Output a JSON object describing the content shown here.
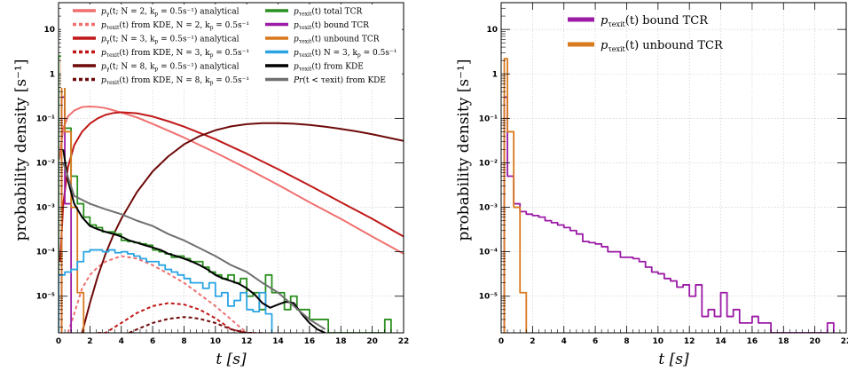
{
  "chart_data": [
    {
      "type": "line",
      "title": "",
      "xlabel": "t  [s]",
      "ylabel": "probability density  [s⁻¹]",
      "xlim": [
        0,
        22
      ],
      "ylim": [
        1.5e-06,
        40
      ],
      "yscale": "log",
      "grid": true,
      "legend_position": "top",
      "x_ticks": [
        "0",
        "2",
        "4",
        "6",
        "8",
        "10",
        "12",
        "14",
        "16",
        "18",
        "20",
        "22"
      ],
      "y_ticks": [
        "10",
        "1",
        "10⁻¹",
        "10⁻²",
        "10⁻³",
        "10⁻⁴",
        "10⁻⁵"
      ],
      "series": [
        {
          "name": "pγ(t; N = 2, kₚ = 0.5s⁻¹) analytical",
          "color": "#f07070",
          "style": "solid",
          "x": [
            0.05,
            0.3,
            0.6,
            1,
            1.5,
            2,
            2.5,
            3,
            4,
            5,
            6,
            8,
            10,
            12,
            14,
            16,
            18,
            20,
            22
          ],
          "y": [
            0.012,
            0.06,
            0.11,
            0.15,
            0.18,
            0.185,
            0.18,
            0.17,
            0.135,
            0.105,
            0.075,
            0.037,
            0.017,
            0.0075,
            0.0032,
            0.0013,
            0.00055,
            0.00022,
            9e-05
          ]
        },
        {
          "name": "pτexit(t) from KDE, N = 2, kₚ = 0.5s⁻¹",
          "color": "#f07070",
          "style": "dashed",
          "x": [
            0.6,
            1,
            1.5,
            2,
            2.5,
            3,
            4,
            5,
            6,
            7,
            8,
            9,
            10,
            11,
            12,
            13
          ],
          "y": [
            1.5e-06,
            4e-06,
            1.5e-05,
            3e-05,
            4.5e-05,
            6e-05,
            8e-05,
            7e-05,
            5e-05,
            3.2e-05,
            2e-05,
            1.1e-05,
            6e-06,
            3e-06,
            1.5e-06,
            8e-07
          ]
        },
        {
          "name": "pγ(t; N = 3, kₚ = 0.5s⁻¹) analytical",
          "color": "#c01818",
          "style": "solid",
          "x": [
            0.1,
            0.3,
            0.6,
            1,
            1.5,
            2,
            2.5,
            3,
            3.5,
            4,
            5,
            6,
            7,
            8,
            10,
            12,
            14,
            16,
            18,
            20,
            22
          ],
          "y": [
            6e-05,
            0.0012,
            0.008,
            0.025,
            0.05,
            0.076,
            0.1,
            0.12,
            0.132,
            0.137,
            0.13,
            0.11,
            0.086,
            0.065,
            0.034,
            0.016,
            0.0072,
            0.0031,
            0.0013,
            0.00055,
            0.00022
          ]
        },
        {
          "name": "pτexit(t) from KDE, N = 3, kₚ = 0.5s⁻¹",
          "color": "#c01818",
          "style": "dashed",
          "x": [
            2.5,
            3,
            4,
            5,
            6,
            7,
            8,
            9,
            10,
            11,
            12
          ],
          "y": [
            8e-07,
            1.3e-06,
            2.5e-06,
            4.2e-06,
            6e-06,
            7e-06,
            6.5e-06,
            5e-06,
            3.2e-06,
            1.8e-06,
            8e-07
          ]
        },
        {
          "name": "pγ(t; N = 8, kₚ = 0.5s⁻¹) analytical",
          "color": "#6e0a0a",
          "style": "solid",
          "x": [
            1.5,
            2,
            2.5,
            3,
            3.5,
            4,
            5,
            6,
            7,
            8,
            9,
            10,
            11,
            12,
            13,
            14,
            15,
            16,
            17,
            18,
            19,
            20,
            21,
            22
          ],
          "y": [
            1.5e-06,
            7e-06,
            2.8e-05,
            9e-05,
            0.00024,
            0.00055,
            0.0022,
            0.0064,
            0.014,
            0.026,
            0.04,
            0.054,
            0.066,
            0.074,
            0.078,
            0.078,
            0.076,
            0.071,
            0.065,
            0.058,
            0.051,
            0.044,
            0.037,
            0.031
          ]
        },
        {
          "name": "pτexit(t) from KDE, N = 8, kₚ = 0.5s⁻¹",
          "color": "#6e0a0a",
          "style": "dashed",
          "x": [
            4.5,
            5,
            6,
            7,
            8,
            8.5,
            9,
            10,
            11,
            12,
            12.5
          ],
          "y": [
            1.5e-06,
            1.8e-06,
            2.5e-06,
            3.1e-06,
            3.4e-06,
            3.3e-06,
            3.1e-06,
            2.5e-06,
            1.8e-06,
            1.2e-06,
            9e-07
          ]
        },
        {
          "name": "pτexit(t) total TCR",
          "color": "#2a8f1e",
          "style": "step",
          "edges": [
            0,
            0.4,
            0.8,
            1.2,
            1.6,
            2,
            2.4,
            2.8,
            3.2,
            3.6,
            4,
            4.4,
            4.8,
            5.2,
            5.6,
            6,
            6.4,
            6.8,
            7.2,
            7.6,
            8,
            8.4,
            8.8,
            9.2,
            9.6,
            10,
            10.4,
            10.8,
            11.2,
            11.6,
            12,
            12.4,
            12.8,
            13.2,
            13.6,
            14,
            14.4,
            14.8,
            15.2,
            15.6,
            16,
            16.4,
            16.8,
            17.2,
            20.8,
            21.2
          ],
          "values": [
            2.5,
            0.06,
            0.005,
            0.0012,
            0.0006,
            0.0004,
            0.00035,
            0.00028,
            0.00028,
            0.00025,
            0.00018,
            0.00017,
            0.00016,
            0.00015,
            0.00014,
            0.00011,
            0.0001,
            9e-05,
            7.5e-05,
            8e-05,
            7e-05,
            6e-05,
            6e-05,
            4.5e-05,
            3.5e-05,
            3e-05,
            2.5e-05,
            3e-05,
            2e-05,
            2.5e-05,
            1e-05,
            1.2e-05,
            5e-06,
            3e-05,
            1.2e-05,
            1.2e-05,
            5e-06,
            1e-05,
            5e-06,
            5e-06,
            3e-06,
            3e-06,
            3e-06,
            0,
            3e-06
          ]
        },
        {
          "name": "pτexit(t) bound TCR",
          "color": "#9b1aa6",
          "style": "step",
          "edges": [
            0.2,
            0.4,
            0.8
          ],
          "values": [
            0.3,
            0.0012
          ]
        },
        {
          "name": "pτexit(t) unbound TCR",
          "color": "#d9791e",
          "style": "step",
          "edges": [
            0.2,
            0.4,
            0.8,
            1.2,
            1.6
          ],
          "values": [
            2.2,
            0.05,
            0.001,
            1.2e-05
          ]
        },
        {
          "name": "pτexit(t) N = 3, kₚ = 0.5s⁻¹",
          "color": "#2aa4e3",
          "style": "step",
          "edges": [
            0,
            0.4,
            0.8,
            1.2,
            1.6,
            2,
            2.4,
            2.8,
            3.2,
            3.6,
            4,
            4.4,
            4.8,
            5.2,
            5.6,
            6,
            6.4,
            6.8,
            7.2,
            7.6,
            8,
            8.4,
            8.8,
            9.2,
            9.6,
            10,
            10.4,
            10.8,
            11.2,
            11.6,
            12,
            12.4,
            12.8,
            13.2,
            13.6
          ],
          "values": [
            3e-05,
            3.5e-05,
            4e-05,
            6e-05,
            0.0001,
            0.00011,
            0.00011,
            0.0001,
            0.00011,
            9.5e-05,
            0.0001,
            9e-05,
            8e-05,
            7e-05,
            6e-05,
            6e-05,
            5e-05,
            4e-05,
            3.5e-05,
            3e-05,
            2.5e-05,
            2e-05,
            2e-05,
            1.5e-05,
            2e-05,
            1e-05,
            1.2e-05,
            6e-06,
            8e-06,
            1.2e-05,
            5e-06,
            4.5e-06,
            1.2e-05,
            4e-06
          ]
        },
        {
          "name": "pτexit(t)  from KDE",
          "color": "#000000",
          "style": "solid",
          "x": [
            0.3,
            0.6,
            1,
            1.5,
            2,
            2.5,
            3,
            3.5,
            4,
            4.5,
            5,
            5.5,
            6,
            6.5,
            7,
            7.5,
            8,
            8.5,
            9,
            9.5,
            10,
            10.5,
            11,
            11.5,
            12,
            12.5,
            13,
            13.5,
            14,
            14.5,
            15,
            15.5,
            16,
            16.5,
            17
          ],
          "y": [
            0.02,
            0.004,
            0.0012,
            0.0006,
            0.00038,
            0.00032,
            0.00028,
            0.00025,
            0.00022,
            0.00018,
            0.00016,
            0.00014,
            0.000125,
            0.00011,
            9e-05,
            8e-05,
            7e-05,
            6e-05,
            5e-05,
            4e-05,
            3e-05,
            2.5e-05,
            2.2e-05,
            1.9e-05,
            1.5e-05,
            1.1e-05,
            7e-06,
            5.5e-06,
            6.5e-06,
            7.5e-06,
            7e-06,
            4e-06,
            2.5e-06,
            1.8e-06,
            1.5e-06
          ]
        },
        {
          "name": "Pr(t < τexit)  from KDE",
          "color": "#707070",
          "style": "solid",
          "x": [
            0.3,
            1,
            2,
            3,
            4,
            5,
            6,
            7,
            8,
            9,
            10,
            11,
            12,
            13,
            14,
            15,
            16,
            17
          ],
          "y": [
            0.01,
            0.0018,
            0.0012,
            0.0009,
            0.0007,
            0.0005,
            0.00038,
            0.00025,
            0.00018,
            0.00012,
            8e-05,
            5e-05,
            3.5e-05,
            2e-05,
            1.2e-05,
            6e-06,
            3e-06,
            1.8e-06
          ]
        }
      ],
      "legend": [
        {
          "tex": "p",
          "sub": "γ",
          "rest": "(t; N = 2, k",
          "sub2": "p",
          "rest2": " = 0.5s⁻¹) analytical",
          "color": "#f07070",
          "style": "solid"
        },
        {
          "tex": "p",
          "sub": "τexit",
          "rest": "(t) from KDE, N = 2, k",
          "sub2": "p",
          "rest2": " = 0.5s⁻¹",
          "color": "#f07070",
          "style": "dashed"
        },
        {
          "tex": "p",
          "sub": "γ",
          "rest": "(t; N = 3, k",
          "sub2": "p",
          "rest2": " = 0.5s⁻¹) analytical",
          "color": "#c01818",
          "style": "solid"
        },
        {
          "tex": "p",
          "sub": "τexit",
          "rest": "(t) from KDE, N = 3, k",
          "sub2": "p",
          "rest2": " = 0.5s⁻¹",
          "color": "#c01818",
          "style": "dashed"
        },
        {
          "tex": "p",
          "sub": "γ",
          "rest": "(t; N = 8, k",
          "sub2": "p",
          "rest2": " = 0.5s⁻¹) analytical",
          "color": "#6e0a0a",
          "style": "solid"
        },
        {
          "tex": "p",
          "sub": "τexit",
          "rest": "(t) from KDE, N = 8, k",
          "sub2": "p",
          "rest2": " = 0.5s⁻¹",
          "color": "#6e0a0a",
          "style": "dashed"
        },
        {
          "tex": "p",
          "sub": "τexit",
          "rest": "(t) total TCR",
          "sub2": "",
          "rest2": "",
          "color": "#2a8f1e",
          "style": "solid"
        },
        {
          "tex": "p",
          "sub": "τexit",
          "rest": "(t) bound TCR",
          "sub2": "",
          "rest2": "",
          "color": "#9b1aa6",
          "style": "solid"
        },
        {
          "tex": "p",
          "sub": "τexit",
          "rest": "(t) unbound TCR",
          "sub2": "",
          "rest2": "",
          "color": "#d9791e",
          "style": "solid"
        },
        {
          "tex": "p",
          "sub": "τexit",
          "rest": "(t) N = 3, k",
          "sub2": "p",
          "rest2": " = 0.5s⁻¹",
          "color": "#2aa4e3",
          "style": "solid"
        },
        {
          "tex": "p",
          "sub": "τexit",
          "rest": "(t)  from KDE",
          "sub2": "",
          "rest2": "",
          "color": "#000000",
          "style": "solid"
        },
        {
          "tex": "Pr",
          "sub": "",
          "rest": "(t < τexit)  from KDE",
          "sub2": "",
          "rest2": "",
          "color": "#707070",
          "style": "solid"
        }
      ]
    },
    {
      "type": "line",
      "title": "",
      "xlabel": "t  [s]",
      "ylabel": "probability density  [s⁻¹]",
      "xlim": [
        0,
        22
      ],
      "ylim": [
        1.5e-06,
        40
      ],
      "yscale": "log",
      "grid": true,
      "legend_position": "top-center",
      "x_ticks": [
        "0",
        "2",
        "4",
        "6",
        "8",
        "10",
        "12",
        "14",
        "16",
        "18",
        "20",
        "22"
      ],
      "y_ticks": [
        "10",
        "1",
        "10⁻¹",
        "10⁻²",
        "10⁻³",
        "10⁻⁴",
        "10⁻⁵"
      ],
      "series": [
        {
          "name": "pτexit(t) bound TCR",
          "color": "#9b1aa6",
          "style": "step",
          "edges": [
            0.2,
            0.4,
            0.8,
            1.2,
            1.6,
            2,
            2.4,
            2.8,
            3.2,
            3.6,
            4,
            4.4,
            4.8,
            5.2,
            5.6,
            6,
            6.4,
            6.8,
            7.2,
            7.6,
            8,
            8.4,
            8.8,
            9.2,
            9.6,
            10,
            10.4,
            10.8,
            11.2,
            11.6,
            12,
            12.4,
            12.8,
            13.2,
            13.6,
            14,
            14.4,
            14.8,
            15.2,
            15.6,
            16,
            16.4,
            16.8,
            17.2,
            20.8,
            21.2
          ],
          "values": [
            0.3,
            0.005,
            0.0012,
            0.0008,
            0.0007,
            0.00065,
            0.0006,
            0.0005,
            0.00045,
            0.0004,
            0.00035,
            0.0003,
            0.00025,
            0.00017,
            0.00016,
            0.00015,
            0.00013,
            0.0001,
            0.0001,
            7.5e-05,
            7.5e-05,
            7e-05,
            6e-05,
            4.5e-05,
            3.5e-05,
            3.2e-05,
            2.5e-05,
            2.2e-05,
            1.6e-05,
            1.8e-05,
            1e-05,
            1.8e-05,
            3.5e-06,
            5e-06,
            3.5e-06,
            1.2e-05,
            3.5e-06,
            5e-06,
            2.5e-06,
            2.5e-06,
            3.5e-06,
            2.5e-06,
            2.5e-06,
            0,
            2.5e-06
          ]
        },
        {
          "name": "pτexit(t) unbound TCR",
          "color": "#d9791e",
          "style": "step",
          "edges": [
            0.2,
            0.4,
            0.8,
            1.2,
            1.6
          ],
          "values": [
            2.2,
            0.05,
            0.001,
            1.2e-05
          ]
        }
      ],
      "legend": [
        {
          "tex": "p",
          "sub": "τexit",
          "rest": "(t) bound TCR",
          "color": "#9b1aa6"
        },
        {
          "tex": "p",
          "sub": "τexit",
          "rest": "(t) unbound TCR",
          "color": "#d9791e"
        }
      ]
    }
  ]
}
